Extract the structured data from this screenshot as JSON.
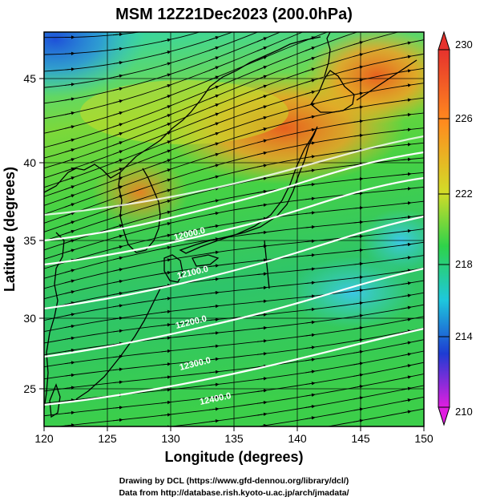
{
  "title": "MSM 12Z21Dec2023 (200.0hPa)",
  "x_axis": {
    "label": "Longitude (degrees)",
    "range": [
      120,
      150
    ],
    "ticks": [
      "120",
      "125",
      "130",
      "135",
      "140",
      "145",
      "150"
    ]
  },
  "y_axis": {
    "label": "Latitude  (degrees)",
    "range": [
      22.4,
      47.6
    ],
    "ticks": [
      "25",
      "30",
      "35",
      "40",
      "45"
    ]
  },
  "colorbar": {
    "range": [
      210,
      230
    ],
    "tick_labels": [
      "230",
      "226",
      "222",
      "218",
      "214",
      "210"
    ],
    "colors": {
      "min": "#e01ee0",
      "low": "#1e3cd2",
      "mid_low": "#1ec8dc",
      "mid": "#2ed24a",
      "mid_high": "#d2dc28",
      "high": "#ff8a1e",
      "max": "#e6322d"
    }
  },
  "height_contours": {
    "color": "#ffffff",
    "labels": [
      "12000.0",
      "12100.0",
      "12200.0",
      "12300.0",
      "12400.0"
    ]
  },
  "credits": {
    "line1": "Drawing by DCL (https://www.gfd-dennou.org/library/dcl/)",
    "line2": "Data from http://database.rish.kyoto-u.ac.jp/arch/jmadata/"
  }
}
